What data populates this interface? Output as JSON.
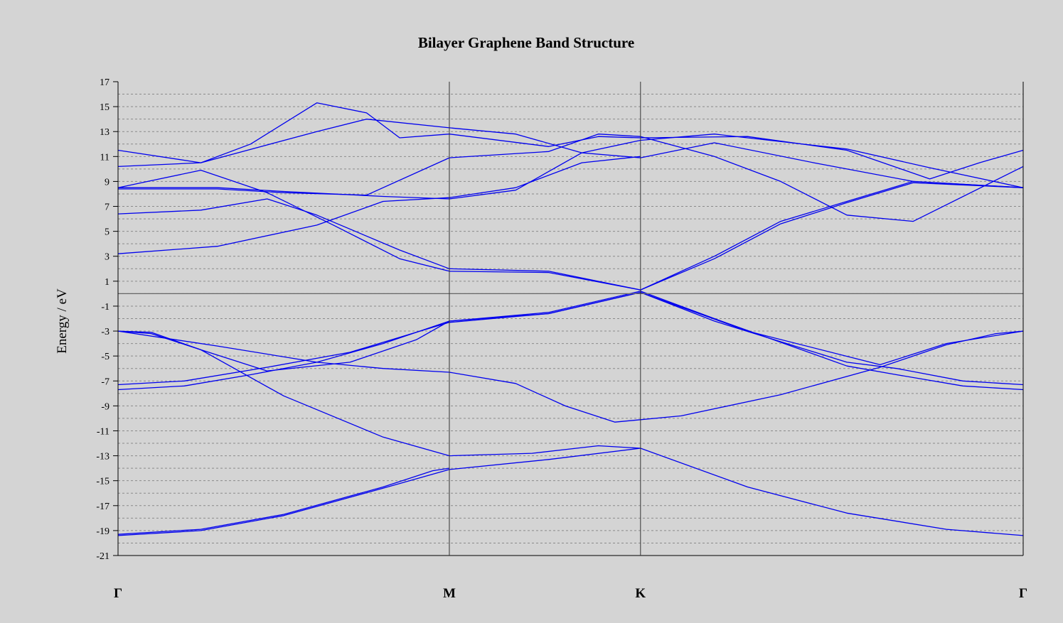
{
  "chart_data": {
    "type": "line",
    "title": "Bilayer Graphene Band Structure",
    "xlabel": "",
    "ylabel": "Energy / eV",
    "ylim": [
      -21,
      17
    ],
    "yticks": [
      17,
      15,
      13,
      11,
      9,
      7,
      5,
      3,
      1,
      -1,
      -3,
      -5,
      -7,
      -9,
      -11,
      -13,
      -15,
      -17,
      -19,
      -21
    ],
    "x_ticks": [
      {
        "label": "Γ",
        "pos": 0
      },
      {
        "label": "M",
        "pos": 1
      },
      {
        "label": "K",
        "pos": 1.577
      },
      {
        "label": "Γ",
        "pos": 2.732
      }
    ],
    "xlim": [
      0,
      2.732
    ],
    "fermi_level": 0,
    "grid": "dashed horizontal lines",
    "line_color": "#0000ee",
    "series": [
      {
        "points": [
          [
            0,
            -19.4
          ],
          [
            0.25,
            -19
          ],
          [
            0.5,
            -17.8
          ],
          [
            0.8,
            -15.6
          ],
          [
            1,
            -14.1
          ],
          [
            1.3,
            -13.3
          ],
          [
            1.577,
            -12.4
          ],
          [
            1.9,
            -15.5
          ],
          [
            2.2,
            -17.6
          ],
          [
            2.5,
            -18.9
          ],
          [
            2.732,
            -19.4
          ]
        ]
      },
      {
        "points": [
          [
            0,
            -19.3
          ],
          [
            0.25,
            -18.9
          ],
          [
            0.5,
            -17.7
          ],
          [
            0.8,
            -15.5
          ],
          [
            0.95,
            -14.2
          ],
          [
            1,
            -14
          ]
        ]
      },
      {
        "points": [
          [
            0,
            -3
          ],
          [
            0.1,
            -3.2
          ],
          [
            0.25,
            -4.5
          ],
          [
            0.5,
            -8.2
          ],
          [
            0.8,
            -11.5
          ],
          [
            1,
            -13
          ],
          [
            1.25,
            -12.8
          ],
          [
            1.45,
            -12.2
          ],
          [
            1.577,
            -12.4
          ]
        ]
      },
      {
        "points": [
          [
            0,
            -3
          ],
          [
            0.3,
            -4.2
          ],
          [
            0.6,
            -5.5
          ],
          [
            0.8,
            -6
          ],
          [
            1,
            -6.3
          ],
          [
            1.2,
            -7.2
          ],
          [
            1.35,
            -9
          ],
          [
            1.5,
            -10.3
          ],
          [
            1.7,
            -9.8
          ],
          [
            2,
            -8.1
          ],
          [
            2.3,
            -5.9
          ],
          [
            2.5,
            -4.1
          ],
          [
            2.65,
            -3.2
          ],
          [
            2.732,
            -3
          ]
        ]
      },
      {
        "points": [
          [
            0,
            -3
          ],
          [
            0.1,
            -3.1
          ],
          [
            0.25,
            -4.5
          ],
          [
            0.45,
            -6.2
          ],
          [
            0.7,
            -5.5
          ],
          [
            0.9,
            -3.7
          ],
          [
            1,
            -2.2
          ],
          [
            1.3,
            -1.5
          ],
          [
            1.577,
            0.2
          ],
          [
            1.8,
            -2
          ],
          [
            2.2,
            -5.8
          ],
          [
            2.35,
            -6.5
          ],
          [
            2.55,
            -7.4
          ],
          [
            2.732,
            -7.7
          ]
        ]
      },
      {
        "points": [
          [
            0,
            -7.3
          ],
          [
            0.2,
            -7
          ],
          [
            0.45,
            -5.9
          ],
          [
            0.7,
            -4.7
          ],
          [
            0.9,
            -3.1
          ],
          [
            1,
            -2.3
          ],
          [
            1.3,
            -1.6
          ],
          [
            1.577,
            0.1
          ],
          [
            1.8,
            -2.2
          ],
          [
            2.2,
            -5.5
          ],
          [
            2.35,
            -6
          ],
          [
            2.55,
            -7
          ],
          [
            2.732,
            -7.3
          ]
        ]
      },
      {
        "points": [
          [
            0,
            -7.7
          ],
          [
            0.2,
            -7.4
          ],
          [
            0.4,
            -6.5
          ],
          [
            0.6,
            -5.5
          ],
          [
            0.8,
            -4
          ],
          [
            1,
            -2.2
          ],
          [
            1.3,
            -1.6
          ],
          [
            1.577,
            0.1
          ],
          [
            1.9,
            -3
          ],
          [
            2.3,
            -5.7
          ],
          [
            2.5,
            -4
          ],
          [
            2.732,
            -3
          ]
        ]
      },
      {
        "points": [
          [
            0,
            3.2
          ],
          [
            0.3,
            3.8
          ],
          [
            0.6,
            5.5
          ],
          [
            0.8,
            7.4
          ],
          [
            1,
            7.7
          ],
          [
            1.2,
            8.5
          ],
          [
            1.4,
            10.5
          ],
          [
            1.577,
            11
          ]
        ]
      },
      {
        "points": [
          [
            0,
            6.4
          ],
          [
            0.25,
            6.7
          ],
          [
            0.45,
            7.6
          ],
          [
            0.6,
            6.3
          ],
          [
            0.85,
            3.5
          ],
          [
            1,
            2
          ],
          [
            1.3,
            1.8
          ],
          [
            1.577,
            0.3
          ],
          [
            1.8,
            2.8
          ],
          [
            2,
            5.6
          ],
          [
            2.2,
            7.3
          ],
          [
            2.4,
            8.9
          ],
          [
            2.732,
            8.5
          ]
        ]
      },
      {
        "points": [
          [
            0,
            8.5
          ],
          [
            0.3,
            8.5
          ],
          [
            0.5,
            8.2
          ],
          [
            0.8,
            7.8
          ],
          [
            1,
            7.6
          ],
          [
            1.2,
            8.3
          ],
          [
            1.4,
            11.3
          ],
          [
            1.577,
            12.3
          ],
          [
            1.8,
            12.8
          ],
          [
            2.2,
            11.6
          ],
          [
            2.45,
            10.1
          ],
          [
            2.732,
            8.5
          ]
        ]
      },
      {
        "points": [
          [
            0,
            8.5
          ],
          [
            0.25,
            9.9
          ],
          [
            0.45,
            8.1
          ],
          [
            0.65,
            5.5
          ],
          [
            0.85,
            2.8
          ],
          [
            1,
            1.8
          ],
          [
            1.3,
            1.7
          ],
          [
            1.577,
            0.3
          ],
          [
            1.8,
            3
          ],
          [
            2,
            5.8
          ],
          [
            2.2,
            7.4
          ],
          [
            2.4,
            9
          ],
          [
            2.732,
            8.5
          ]
        ]
      },
      {
        "points": [
          [
            0,
            10.2
          ],
          [
            0.25,
            10.5
          ],
          [
            0.6,
            13
          ],
          [
            0.75,
            14
          ],
          [
            1,
            13.3
          ],
          [
            1.2,
            12.8
          ],
          [
            1.4,
            11.3
          ],
          [
            1.577,
            10.9
          ],
          [
            1.8,
            12.1
          ],
          [
            2.1,
            10.5
          ],
          [
            2.4,
            9
          ],
          [
            2.732,
            8.5
          ]
        ]
      },
      {
        "points": [
          [
            0,
            11.5
          ],
          [
            0.25,
            10.5
          ],
          [
            0.4,
            12
          ],
          [
            0.6,
            15.3
          ],
          [
            0.75,
            14.5
          ],
          [
            0.85,
            12.5
          ],
          [
            1,
            12.8
          ],
          [
            1.3,
            11.8
          ],
          [
            1.45,
            12.6
          ],
          [
            1.577,
            12.5
          ],
          [
            1.9,
            12.6
          ],
          [
            2.2,
            11.5
          ],
          [
            2.45,
            9.2
          ],
          [
            2.6,
            10.5
          ],
          [
            2.732,
            11.5
          ]
        ]
      },
      {
        "points": [
          [
            0,
            8.4
          ],
          [
            0.3,
            8.4
          ],
          [
            0.5,
            8.1
          ],
          [
            0.75,
            7.9
          ],
          [
            1,
            10.9
          ],
          [
            1.3,
            11.4
          ],
          [
            1.45,
            12.8
          ],
          [
            1.577,
            12.6
          ],
          [
            1.8,
            11
          ],
          [
            2,
            9
          ],
          [
            2.2,
            6.3
          ],
          [
            2.4,
            5.8
          ],
          [
            2.732,
            10.2
          ]
        ]
      }
    ]
  }
}
